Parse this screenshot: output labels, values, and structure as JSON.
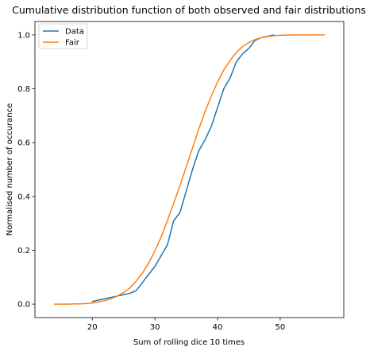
{
  "chart_data": {
    "type": "line",
    "title": "Cumulative distribution function of both observed and fair distributions",
    "xlabel": "Sum of rolling dice 10 times",
    "ylabel": "Normalised number of occurance",
    "xlim": [
      10.85,
      60.15
    ],
    "ylim": [
      -0.05,
      1.05
    ],
    "xticks": [
      20,
      30,
      40,
      50
    ],
    "yticks": [
      0.0,
      0.2,
      0.4,
      0.6,
      0.8,
      1.0
    ],
    "xtick_labels": [
      "20",
      "30",
      "40",
      "50"
    ],
    "ytick_labels": [
      "0.0",
      "0.2",
      "0.4",
      "0.6",
      "0.8",
      "1.0"
    ],
    "grid": false,
    "legend_position": "top-left",
    "series": [
      {
        "name": "Data",
        "color": "#1f77b4",
        "x": [
          20,
          21,
          22,
          23,
          24,
          25,
          26,
          27,
          28,
          29,
          30,
          31,
          32,
          33,
          34,
          35,
          36,
          37,
          38,
          39,
          40,
          41,
          42,
          43,
          44,
          45,
          46,
          47,
          48,
          49
        ],
        "y": [
          0.01,
          0.015,
          0.02,
          0.025,
          0.03,
          0.035,
          0.04,
          0.05,
          0.08,
          0.11,
          0.14,
          0.18,
          0.22,
          0.31,
          0.34,
          0.42,
          0.5,
          0.57,
          0.61,
          0.66,
          0.73,
          0.8,
          0.84,
          0.9,
          0.93,
          0.95,
          0.98,
          0.99,
          0.995,
          1.0
        ]
      },
      {
        "name": "Fair",
        "color": "#ff7f0e",
        "x": [
          14,
          15,
          16,
          17,
          18,
          19,
          20,
          21,
          22,
          23,
          24,
          25,
          26,
          27,
          28,
          29,
          30,
          31,
          32,
          33,
          34,
          35,
          36,
          37,
          38,
          39,
          40,
          41,
          42,
          43,
          44,
          45,
          46,
          47,
          48,
          49,
          50,
          51,
          52,
          53,
          54,
          55,
          56,
          57
        ],
        "y": [
          0.0,
          0.0,
          0.0,
          0.0005,
          0.001,
          0.002,
          0.004,
          0.008,
          0.013,
          0.02,
          0.03,
          0.043,
          0.06,
          0.085,
          0.115,
          0.152,
          0.198,
          0.25,
          0.31,
          0.375,
          0.44,
          0.51,
          0.58,
          0.65,
          0.715,
          0.772,
          0.825,
          0.87,
          0.905,
          0.935,
          0.957,
          0.972,
          0.983,
          0.99,
          0.994,
          0.997,
          0.9985,
          0.9992,
          0.9996,
          0.9998,
          0.9999,
          1.0,
          1.0,
          1.0
        ]
      }
    ]
  }
}
